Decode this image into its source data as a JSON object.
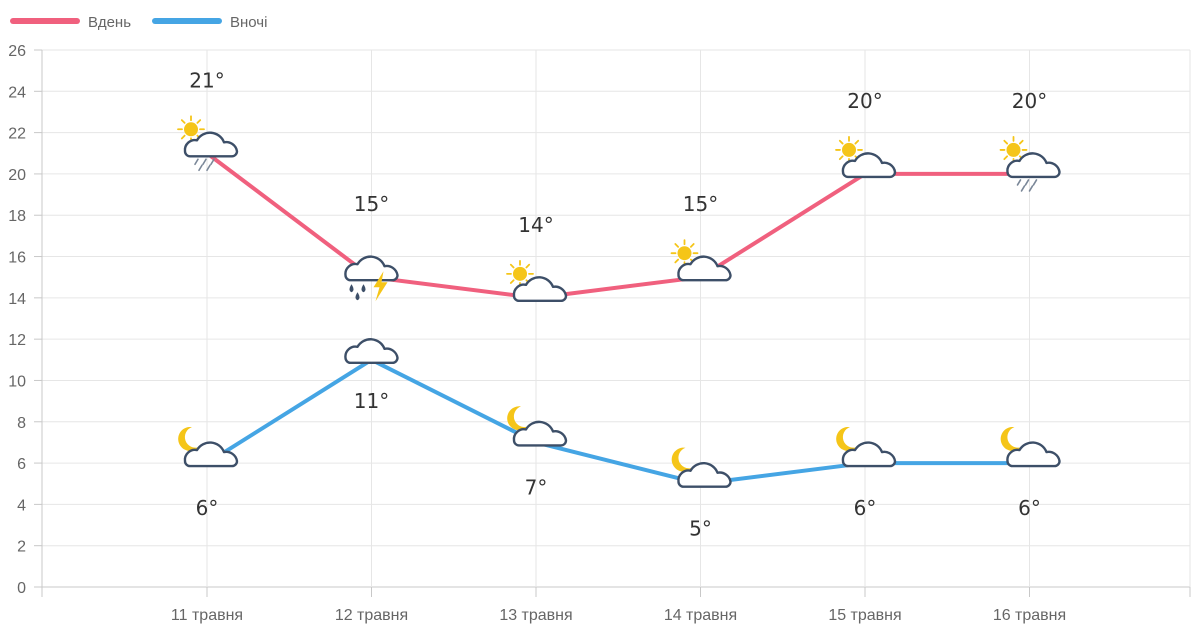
{
  "chart_data": {
    "type": "line",
    "categories": [
      "11 травня",
      "12 травня",
      "13 травня",
      "14 травня",
      "15 травня",
      "16 травня"
    ],
    "ylim": [
      0,
      26
    ],
    "yticks": [
      0,
      2,
      4,
      6,
      8,
      10,
      12,
      14,
      16,
      18,
      20,
      22,
      24,
      26
    ],
    "grid": true,
    "legend_position": "top-left",
    "series": [
      {
        "name": "Вдень",
        "color": "#f0607e",
        "values": [
          21,
          15,
          14,
          15,
          20,
          20
        ],
        "labels": [
          "21°",
          "15°",
          "14°",
          "15°",
          "20°",
          "20°"
        ],
        "icons": [
          "sun-cloud-rain-icon",
          "cloud-thunder-rain-icon",
          "sun-cloud-icon",
          "sun-cloud-icon",
          "sun-cloud-icon",
          "sun-cloud-rain-icon"
        ]
      },
      {
        "name": "Вночі",
        "color": "#45a5e4",
        "values": [
          6,
          11,
          7,
          5,
          6,
          6
        ],
        "labels": [
          "6°",
          "11°",
          "7°",
          "5°",
          "6°",
          "6°"
        ],
        "icons": [
          "moon-cloud-icon",
          "cloud-icon",
          "moon-cloud-icon",
          "moon-cloud-icon",
          "moon-cloud-icon",
          "moon-cloud-icon"
        ]
      }
    ]
  }
}
